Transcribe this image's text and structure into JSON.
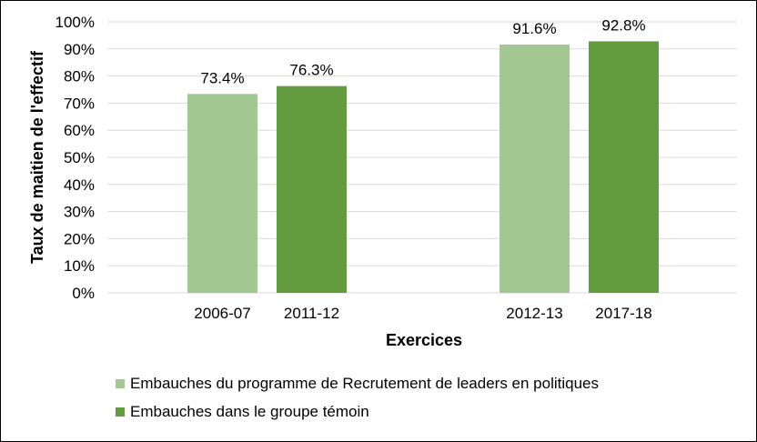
{
  "chart_data": {
    "type": "bar",
    "ylabel": "Taux de maitien de l'effectif",
    "xlabel": "Exercices",
    "ylim": [
      0,
      100
    ],
    "y_ticks": [
      "0%",
      "10%",
      "20%",
      "30%",
      "40%",
      "50%",
      "60%",
      "70%",
      "80%",
      "90%",
      "100%"
    ],
    "grid": true,
    "legend_position": "bottom",
    "bars": [
      {
        "category": "2006-07",
        "value": 73.4,
        "label": "73.4%",
        "series": 0
      },
      {
        "category": "2011-12",
        "value": 76.3,
        "label": "76.3%",
        "series": 1
      },
      {
        "category": "2012-13",
        "value": 91.6,
        "label": "91.6%",
        "series": 0
      },
      {
        "category": "2017-18",
        "value": 92.8,
        "label": "92.8%",
        "series": 1
      }
    ],
    "series": [
      {
        "name": "Embauches du programme de Recrutement de leaders en politiques",
        "color": "#a3c790"
      },
      {
        "name": "Embauches dans le groupe témoin",
        "color": "#639c40"
      }
    ],
    "gridline_color": "#d9d9d9"
  }
}
